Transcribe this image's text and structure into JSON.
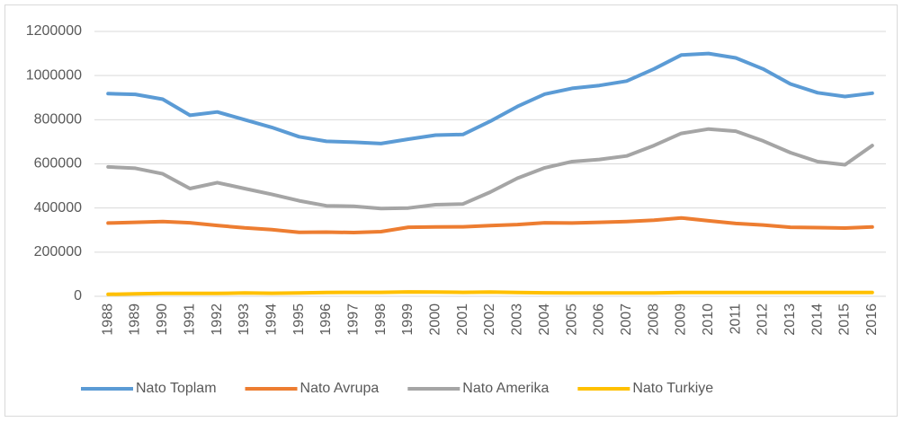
{
  "chart_data": {
    "type": "line",
    "categories": [
      "1988",
      "1989",
      "1990",
      "1991",
      "1992",
      "1993",
      "1994",
      "1995",
      "1996",
      "1997",
      "1998",
      "1999",
      "2000",
      "2001",
      "2002",
      "2003",
      "2004",
      "2005",
      "2006",
      "2007",
      "2008",
      "2009",
      "2010",
      "2011",
      "2012",
      "2013",
      "2014",
      "2015",
      "2016"
    ],
    "series": [
      {
        "name": "Nato Toplam",
        "color": "#5b9bd5",
        "values": [
          918000,
          915000,
          893000,
          820000,
          835000,
          800000,
          765000,
          723000,
          702000,
          698000,
          692000,
          712000,
          730000,
          733000,
          793000,
          860000,
          916000,
          942000,
          955000,
          975000,
          1030000,
          1093000,
          1100000,
          1080000,
          1030000,
          962000,
          922000,
          905000,
          920000
        ]
      },
      {
        "name": "Nato Avrupa",
        "color": "#ed7d31",
        "values": [
          332000,
          335000,
          339000,
          333000,
          321000,
          310000,
          302000,
          290000,
          291000,
          289000,
          293000,
          313000,
          314000,
          315000,
          320000,
          325000,
          333000,
          332000,
          335000,
          339000,
          345000,
          355000,
          342000,
          330000,
          323000,
          313000,
          311000,
          309000,
          314000
        ]
      },
      {
        "name": "Nato Amerika",
        "color": "#a5a5a5",
        "values": [
          586000,
          580000,
          555000,
          488000,
          515000,
          488000,
          462000,
          433000,
          410000,
          408000,
          398000,
          400000,
          415000,
          418000,
          472000,
          535000,
          582000,
          610000,
          620000,
          636000,
          683000,
          738000,
          758000,
          748000,
          704000,
          651000,
          610000,
          596000,
          683000
        ]
      },
      {
        "name": "Nato Turkiye",
        "color": "#ffc000",
        "values": [
          9000,
          11000,
          13000,
          13000,
          13000,
          15000,
          14000,
          15000,
          17000,
          18000,
          18000,
          20000,
          19000,
          18000,
          19000,
          17000,
          16000,
          15000,
          15000,
          15000,
          15000,
          17000,
          17000,
          17000,
          17000,
          17000,
          17000,
          17000,
          17000
        ]
      }
    ],
    "ylim": [
      0,
      1200000
    ],
    "yticks": [
      0,
      200000,
      400000,
      600000,
      800000,
      1000000,
      1200000
    ],
    "grid": true,
    "legend": "bottom"
  }
}
